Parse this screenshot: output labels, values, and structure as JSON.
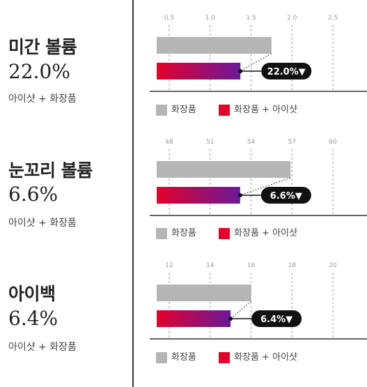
{
  "legend": {
    "cosmetic": "화장품",
    "combined": "화장품 + 아이샷"
  },
  "colors": {
    "cosmetic_bar": "#b5b5b5",
    "combined_start": "#e4002b",
    "combined_end": "#6a1a9a",
    "badge_bg": "#111111",
    "badge_text": "#ffffff"
  },
  "metrics": [
    {
      "title": "미간 볼륨",
      "value": "22.0%",
      "subtitle": "아이샷 + 화장품",
      "badge": "22.0%▼"
    },
    {
      "title": "눈꼬리 볼륨",
      "value": "6.6%",
      "subtitle": "아이샷 + 화장품",
      "badge": "6.6%▼"
    },
    {
      "title": "아이백",
      "value": "6.4%",
      "subtitle": "아이샷 + 화장품",
      "badge": "6.4%▼"
    }
  ],
  "chart_data": [
    {
      "type": "bar",
      "orientation": "horizontal",
      "x_ticks": [
        "0.5",
        "1.0",
        "1.5",
        "2.0",
        "2.5"
      ],
      "xlim": [
        0.5,
        2.5
      ],
      "series": [
        {
          "name": "화장품",
          "values": [
            1.75
          ]
        },
        {
          "name": "화장품 + 아이샷",
          "values": [
            1.37
          ]
        }
      ],
      "annotation": "22.0%▼",
      "grid": true,
      "legend_position": "bottom"
    },
    {
      "type": "bar",
      "orientation": "horizontal",
      "x_ticks": [
        "48",
        "51",
        "54",
        "57",
        "60"
      ],
      "xlim": [
        48,
        60
      ],
      "series": [
        {
          "name": "화장품",
          "values": [
            56.9
          ]
        },
        {
          "name": "화장품 + 아이샷",
          "values": [
            53.2
          ]
        }
      ],
      "annotation": "6.6%▼",
      "grid": true,
      "legend_position": "bottom"
    },
    {
      "type": "bar",
      "orientation": "horizontal",
      "x_ticks": [
        "12",
        "14",
        "16",
        "18",
        "20"
      ],
      "xlim": [
        12,
        20
      ],
      "series": [
        {
          "name": "화장품",
          "values": [
            16.0
          ]
        },
        {
          "name": "화장품 + 아이샷",
          "values": [
            15.0
          ]
        }
      ],
      "annotation": "6.4%▼",
      "grid": true,
      "legend_position": "bottom"
    }
  ]
}
